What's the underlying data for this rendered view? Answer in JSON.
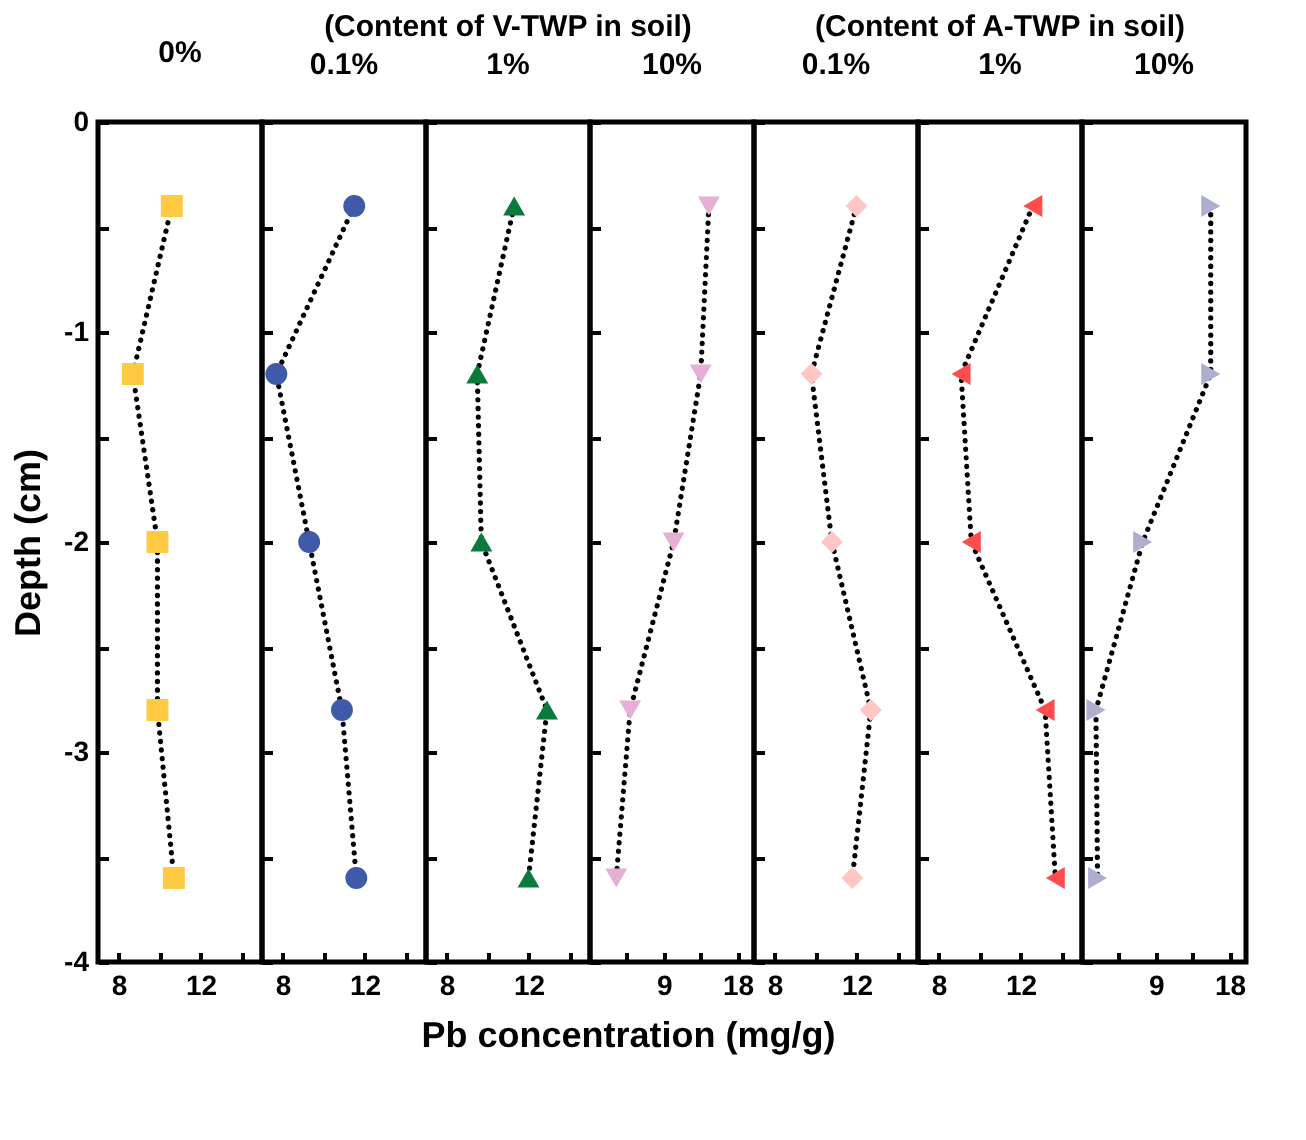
{
  "chart_data": [
    {
      "type": "line",
      "title": "0%",
      "ylabel": "Depth (cm)",
      "xlim": [
        7,
        15
      ],
      "xticks": [
        8,
        {
          "value": 10,
          "label": null
        },
        12,
        {
          "value": 14,
          "label": null
        }
      ],
      "ylim": [
        -4,
        0
      ],
      "yticks": [
        -4,
        {
          "value": -3.5,
          "label": null
        },
        -3,
        {
          "value": -2.5,
          "label": null
        },
        -2,
        {
          "value": -1.5,
          "label": null
        },
        -1,
        {
          "value": -0.5,
          "label": null
        },
        0
      ],
      "line_style": "dotted",
      "series": [
        {
          "color": "#ffc941",
          "marker": "square",
          "x": [
            10.6,
            8.7,
            9.9,
            9.9,
            10.7
          ],
          "values": [
            -0.4,
            -1.2,
            -2,
            -2.8,
            -3.6
          ]
        }
      ]
    },
    {
      "type": "line",
      "title": "0.1%",
      "xlim": [
        7,
        15
      ],
      "xticks": [
        8,
        {
          "value": 10,
          "label": null
        },
        12,
        {
          "value": 14,
          "label": null
        }
      ],
      "ylim": [
        -4,
        0
      ],
      "yticks": [
        -4,
        {
          "value": -3.5,
          "label": null
        },
        -3,
        {
          "value": -2.5,
          "label": null
        },
        -2,
        {
          "value": -1.5,
          "label": null
        },
        -1,
        {
          "value": -0.5,
          "label": null
        },
        0
      ],
      "tick_labels": "x",
      "line_style": "dotted",
      "series": [
        {
          "color": "#3f5aa8",
          "marker": "circle",
          "x": [
            11.5,
            7.7,
            9.3,
            10.9,
            11.6
          ],
          "values": [
            -0.4,
            -1.2,
            -2,
            -2.8,
            -3.6
          ]
        }
      ]
    },
    {
      "type": "line",
      "title": "1%",
      "subtitle": "(Content of V-TWP in soil)",
      "xlim": [
        7,
        15
      ],
      "xticks": [
        8,
        {
          "value": 10,
          "label": null
        },
        12,
        {
          "value": 14,
          "label": null
        }
      ],
      "ylim": [
        -4,
        0
      ],
      "yticks": [
        -4,
        {
          "value": -3.5,
          "label": null
        },
        -3,
        {
          "value": -2.5,
          "label": null
        },
        -2,
        {
          "value": -1.5,
          "label": null
        },
        -1,
        {
          "value": -0.5,
          "label": null
        },
        0
      ],
      "tick_labels": "x",
      "line_style": "dotted",
      "series": [
        {
          "color": "#0a7a3a",
          "marker": "triangle-up",
          "x": [
            11.3,
            9.5,
            9.7,
            12.9,
            12.0
          ],
          "values": [
            -0.4,
            -1.2,
            -2,
            -2.8,
            -3.6
          ]
        }
      ]
    },
    {
      "type": "line",
      "title": "10%",
      "xlabel": "Pb concentration (mg/g)",
      "xlim": [
        0,
        20
      ],
      "xticks": [
        {
          "value": 4.5,
          "label": null
        },
        9,
        {
          "value": 13.5,
          "label": null
        },
        18
      ],
      "ylim": [
        -4,
        0
      ],
      "yticks": [
        -4,
        {
          "value": -3.5,
          "label": null
        },
        -3,
        {
          "value": -2.5,
          "label": null
        },
        -2,
        {
          "value": -1.5,
          "label": null
        },
        -1,
        {
          "value": -0.5,
          "label": null
        },
        0
      ],
      "tick_labels": "x",
      "line_style": "dotted",
      "series": [
        {
          "color": "#e6b0d6",
          "marker": "triangle-down",
          "x": [
            14.5,
            13.5,
            10.2,
            4.9,
            3.2
          ],
          "values": [
            -0.4,
            -1.2,
            -2,
            -2.8,
            -3.6
          ]
        }
      ]
    },
    {
      "type": "line",
      "title": "0.1%",
      "xlim": [
        7,
        15
      ],
      "xticks": [
        8,
        {
          "value": 10,
          "label": null
        },
        12,
        {
          "value": 14,
          "label": null
        }
      ],
      "ylim": [
        -4,
        0
      ],
      "yticks": [
        -4,
        {
          "value": -3.5,
          "label": null
        },
        -3,
        {
          "value": -2.5,
          "label": null
        },
        -2,
        {
          "value": -1.5,
          "label": null
        },
        -1,
        {
          "value": -0.5,
          "label": null
        },
        0
      ],
      "tick_labels": "x",
      "line_style": "dotted",
      "series": [
        {
          "color": "#ffc6c6",
          "marker": "diamond",
          "x": [
            12.0,
            9.8,
            10.8,
            12.7,
            11.8
          ],
          "values": [
            -0.4,
            -1.2,
            -2,
            -2.8,
            -3.6
          ]
        }
      ]
    },
    {
      "type": "line",
      "title": "1%",
      "subtitle": "(Content of A-TWP in soil)",
      "xlim": [
        7,
        15
      ],
      "xticks": [
        8,
        {
          "value": 10,
          "label": null
        },
        12,
        {
          "value": 14,
          "label": null
        }
      ],
      "ylim": [
        -4,
        0
      ],
      "yticks": [
        -4,
        {
          "value": -3.5,
          "label": null
        },
        -3,
        {
          "value": -2.5,
          "label": null
        },
        -2,
        {
          "value": -1.5,
          "label": null
        },
        -1,
        {
          "value": -0.5,
          "label": null
        },
        0
      ],
      "tick_labels": "x",
      "line_style": "dotted",
      "series": [
        {
          "color": "#ff4d4d",
          "marker": "triangle-left",
          "x": [
            12.6,
            9.1,
            9.6,
            13.2,
            13.7
          ],
          "values": [
            -0.4,
            -1.2,
            -2,
            -2.8,
            -3.6
          ]
        }
      ]
    },
    {
      "type": "line",
      "title": "10%",
      "xlim": [
        0,
        20
      ],
      "xticks": [
        {
          "value": 4.5,
          "label": null
        },
        9,
        {
          "value": 13.5,
          "label": null
        },
        18
      ],
      "ylim": [
        -4,
        0
      ],
      "yticks": [
        -4,
        {
          "value": -3.5,
          "label": null
        },
        -3,
        {
          "value": -2.5,
          "label": null
        },
        -2,
        {
          "value": -1.5,
          "label": null
        },
        -1,
        {
          "value": -0.5,
          "label": null
        },
        0
      ],
      "tick_labels": "x",
      "line_style": "dotted",
      "series": [
        {
          "color": "#b0aece",
          "marker": "triangle-right",
          "x": [
            15.7,
            15.7,
            7.4,
            1.7,
            1.9
          ],
          "values": [
            -0.4,
            -1.2,
            -2,
            -2.8,
            -3.6
          ]
        }
      ]
    }
  ]
}
